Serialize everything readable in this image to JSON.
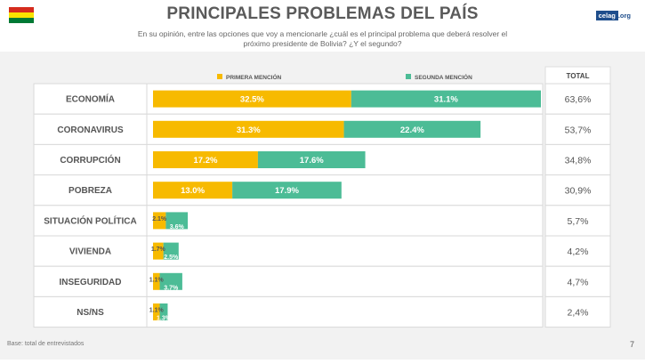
{
  "header": {
    "title": "PRINCIPALES PROBLEMAS DEL PAÍS",
    "subtitle": "En su opinión, entre las opciones que voy a mencionarle ¿cuál es el principal problema que deberá resolver el próximo presidente de Bolivia? ¿Y el segundo?",
    "logo_text": "celag",
    "logo_suffix": ".org"
  },
  "colors": {
    "primera": "#f7ba00",
    "segunda": "#4cbc96",
    "flag_red": "#d52b1e",
    "flag_yellow": "#f9e300",
    "flag_green": "#007934"
  },
  "footer": {
    "base": "Base: total de entrevistados",
    "page": "7"
  },
  "chart_data": {
    "type": "bar",
    "orientation": "horizontal",
    "stacked": true,
    "categories": [
      "ECONOMÍA",
      "CORONAVIRUS",
      "CORRUPCIÓN",
      "POBREZA",
      "SITUACIÓN POLÍTICA",
      "VIVIENDA",
      "INSEGURIDAD",
      "NS/NS"
    ],
    "series": [
      {
        "name": "PRIMERA MENCIÓN",
        "values": [
          32.5,
          31.3,
          17.2,
          13.0,
          2.1,
          1.7,
          1.1,
          1.1
        ],
        "labels": [
          "32.5%",
          "31.3%",
          "17.2%",
          "13.0%",
          "2.1%",
          "1.7%",
          "1.1%",
          "1.1%"
        ]
      },
      {
        "name": "SEGUNDA MENCIÓN",
        "values": [
          31.1,
          22.4,
          17.6,
          17.9,
          3.6,
          2.5,
          3.7,
          1.3
        ],
        "labels": [
          "31.1%",
          "22.4%",
          "17.6%",
          "17.9%",
          "3.6%",
          "2.5%",
          "3.7%",
          "1.3%"
        ]
      }
    ],
    "total_header": "TOTAL",
    "totals": [
      "63,6%",
      "53,7%",
      "34,8%",
      "30,9%",
      "5,7%",
      "4,2%",
      "4,7%",
      "2,4%"
    ],
    "xlim": [
      0,
      70
    ],
    "legend_position": "top"
  }
}
